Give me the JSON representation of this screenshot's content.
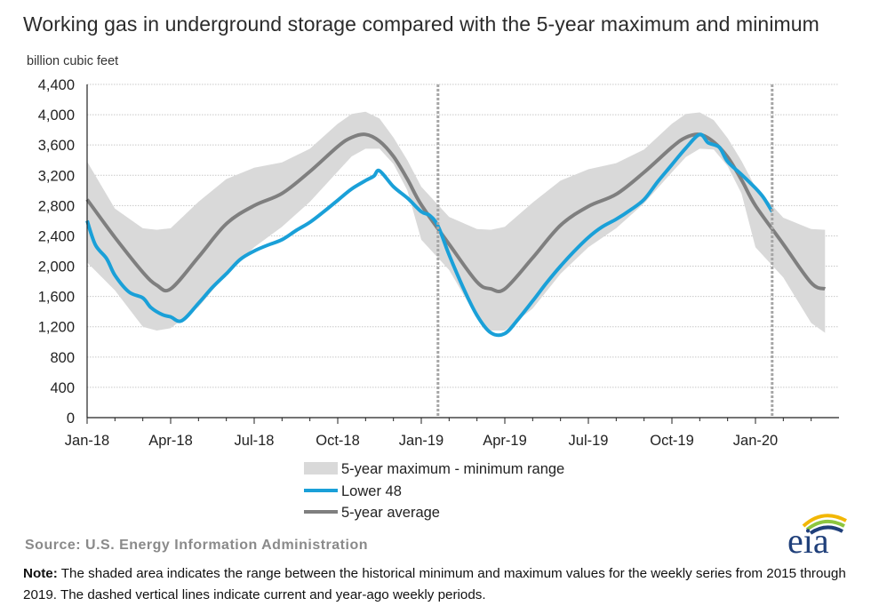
{
  "title": "Working gas in underground  storage compared with the 5-year maximum  and minimum",
  "ylabel": "billion cubic feet",
  "source": "Source:  U.S. Energy Information Administration",
  "note_label": "Note:",
  "note_text": " The shaded area indicates the range between the historical minimum and maximum values for the weekly series from 2015 through 2019. The dashed vertical lines indicate current and year-ago weekly periods.",
  "logo_text": "eia",
  "colors": {
    "range": "#d9d9d9",
    "lower48": "#1aa0d8",
    "average": "#7f7f7f",
    "grid": "#c8c8c8",
    "dashed": "#a6a6a6",
    "logo_blue": "#1f3f7a",
    "logo_green": "#8dc63f",
    "logo_yellow": "#f2b705"
  },
  "chart_data": {
    "type": "area",
    "title": "Working gas in underground  storage compared with the 5-year maximum  and minimum",
    "ylabel": "billion cubic feet",
    "xlabel": "",
    "ylim": [
      0,
      4400
    ],
    "yticks": [
      0,
      400,
      800,
      1200,
      1600,
      2000,
      2400,
      2800,
      3200,
      3600,
      4000,
      4400
    ],
    "ytick_labels": [
      "0",
      "400",
      "800",
      "1,200",
      "1,600",
      "2,000",
      "2,400",
      "2,800",
      "3,200",
      "3,600",
      "4,000",
      "4,400"
    ],
    "xlim": [
      0,
      27
    ],
    "x_unit": "months since Jan-18",
    "xticks": [
      0,
      3,
      6,
      9,
      12,
      15,
      18,
      21,
      24
    ],
    "xtick_labels": [
      "Jan-18",
      "Apr-18",
      "Jul-18",
      "Oct-18",
      "Jan-19",
      "Apr-19",
      "Jul-19",
      "Oct-19",
      "Jan-20"
    ],
    "grid": true,
    "dashed_vlines": [
      12.6,
      24.6
    ],
    "legend": [
      "5-year maximum - minimum range",
      "Lower 48",
      "5-year average"
    ],
    "legend_position": "bottom-center",
    "series": [
      {
        "name": "5-year maximum - minimum range",
        "kind": "band",
        "x": [
          0,
          1,
          2,
          2.5,
          3,
          4,
          5,
          6,
          7,
          8,
          9,
          9.5,
          10,
          10.5,
          11,
          11.5,
          12,
          13,
          14,
          14.5,
          15,
          16,
          17,
          18,
          19,
          20,
          21,
          21.5,
          22,
          22.5,
          23,
          23.5,
          24,
          25,
          26,
          26.5
        ],
        "upper": [
          3380,
          2760,
          2500,
          2480,
          2500,
          2850,
          3150,
          3300,
          3370,
          3550,
          3880,
          4010,
          4040,
          3950,
          3700,
          3400,
          3050,
          2650,
          2490,
          2480,
          2520,
          2840,
          3130,
          3280,
          3360,
          3540,
          3880,
          4010,
          4030,
          3930,
          3690,
          3390,
          3040,
          2640,
          2490,
          2480
        ],
        "lower": [
          2050,
          1680,
          1200,
          1150,
          1180,
          1460,
          1900,
          2250,
          2520,
          2850,
          3250,
          3450,
          3550,
          3550,
          3350,
          3000,
          2350,
          1950,
          1320,
          1150,
          1150,
          1440,
          1900,
          2250,
          2500,
          2830,
          3240,
          3440,
          3550,
          3540,
          3320,
          2960,
          2250,
          1850,
          1250,
          1120
        ]
      },
      {
        "name": "Lower 48",
        "kind": "line",
        "x": [
          0,
          0.3,
          0.7,
          1,
          1.5,
          2,
          2.3,
          2.7,
          3,
          3.4,
          4,
          4.5,
          5,
          5.5,
          6,
          6.5,
          7,
          7.5,
          8,
          8.5,
          9,
          9.5,
          10,
          10.3,
          10.5,
          11,
          11.5,
          12,
          12.3,
          12.6,
          13,
          13.5,
          14,
          14.5,
          15,
          15.5,
          16,
          16.5,
          17,
          17.5,
          18,
          18.5,
          19,
          19.5,
          20,
          20.5,
          21,
          21.5,
          22,
          22.3,
          22.7,
          23,
          23.5,
          24,
          24.3,
          24.6
        ],
        "y": [
          2600,
          2280,
          2100,
          1880,
          1660,
          1580,
          1450,
          1360,
          1330,
          1280,
          1510,
          1720,
          1900,
          2090,
          2200,
          2280,
          2350,
          2470,
          2580,
          2720,
          2870,
          3020,
          3130,
          3190,
          3260,
          3050,
          2900,
          2720,
          2670,
          2530,
          2150,
          1720,
          1350,
          1120,
          1110,
          1310,
          1540,
          1780,
          2000,
          2200,
          2380,
          2520,
          2620,
          2740,
          2880,
          3120,
          3340,
          3560,
          3740,
          3630,
          3570,
          3380,
          3210,
          3030,
          2900,
          2720
        ]
      },
      {
        "name": "5-year average",
        "kind": "line",
        "x": [
          0,
          1,
          2,
          2.5,
          3,
          4,
          5,
          6,
          7,
          8,
          9,
          9.5,
          10,
          10.5,
          11,
          11.5,
          12,
          13,
          14,
          14.5,
          15,
          16,
          17,
          18,
          19,
          20,
          21,
          21.5,
          22,
          22.5,
          23,
          23.5,
          24,
          25,
          26,
          26.5
        ],
        "y": [
          2880,
          2380,
          1920,
          1750,
          1700,
          2120,
          2560,
          2800,
          2960,
          3250,
          3580,
          3700,
          3740,
          3650,
          3450,
          3150,
          2810,
          2290,
          1790,
          1700,
          1700,
          2110,
          2540,
          2790,
          2950,
          3240,
          3570,
          3700,
          3740,
          3640,
          3440,
          3140,
          2800,
          2290,
          1780,
          1700
        ]
      }
    ]
  }
}
